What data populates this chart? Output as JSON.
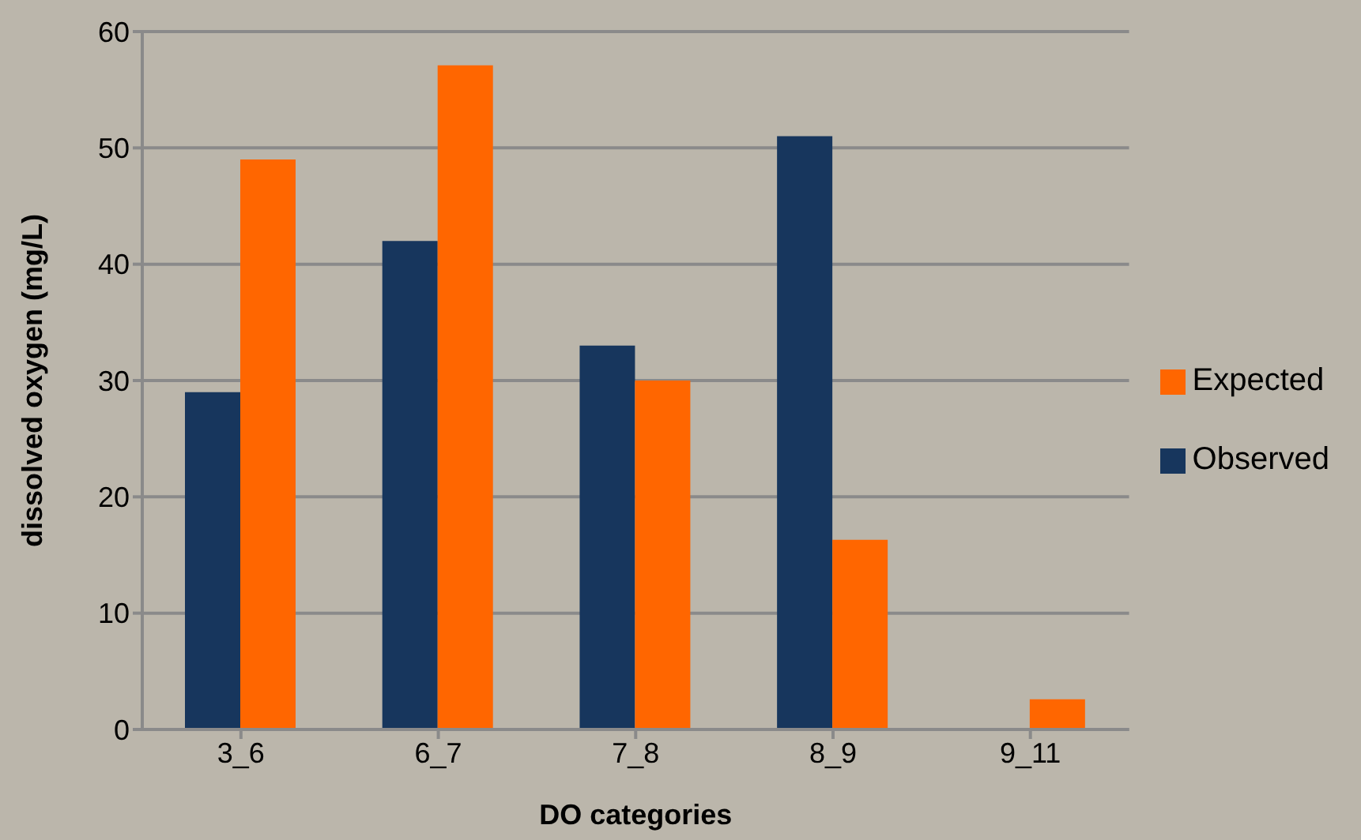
{
  "chart_data": {
    "type": "bar",
    "xlabel": "DO categories",
    "ylabel": "dissolved oxygen (mg/L)",
    "categories": [
      "3_6",
      "6_7",
      "7_8",
      "8_9",
      "9_11"
    ],
    "series": [
      {
        "name": "Observed",
        "color": "#17365d",
        "values": [
          29,
          42,
          33,
          51,
          0
        ]
      },
      {
        "name": "Expected",
        "color": "#ff6600",
        "values": [
          49,
          57.1,
          30,
          16.3,
          2.6
        ]
      }
    ],
    "ylim": [
      0,
      60
    ],
    "yticks": [
      0,
      10,
      20,
      30,
      40,
      50,
      60
    ],
    "grid": "y",
    "legend": "right"
  }
}
